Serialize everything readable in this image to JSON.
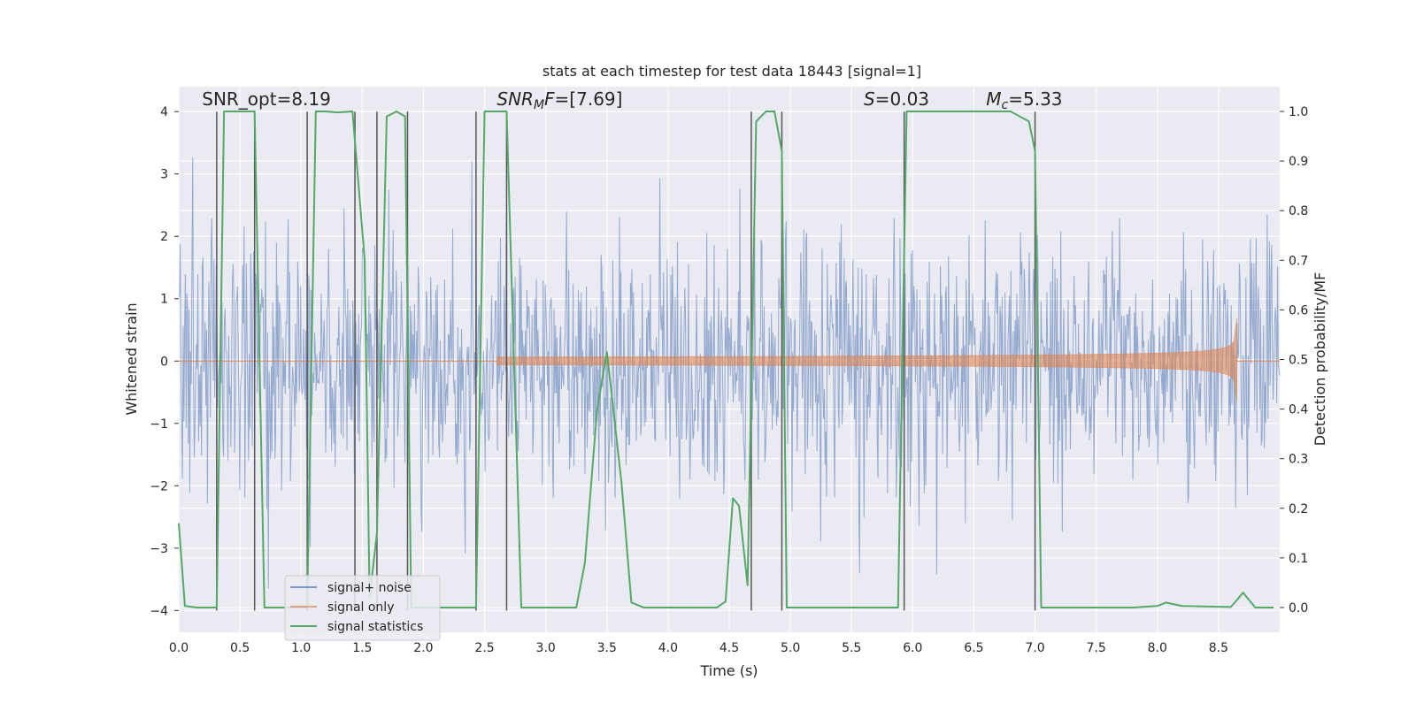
{
  "chart_data": {
    "type": "line",
    "title": "stats at each timestep for test data 18443 [signal=1]",
    "xlabel": "Time (s)",
    "ylabel": "Whitened strain",
    "y2label": "Detection probability/MF",
    "xlim": [
      0.0,
      9.0
    ],
    "ylim": [
      -4.35,
      4.4
    ],
    "y2lim": [
      -0.05,
      1.05
    ],
    "xticks": [
      "0.0",
      "0.5",
      "1.0",
      "1.5",
      "2.0",
      "2.5",
      "3.0",
      "3.5",
      "4.0",
      "4.5",
      "5.0",
      "5.5",
      "6.0",
      "6.5",
      "7.0",
      "7.5",
      "8.0",
      "8.5"
    ],
    "yticks": [
      "−4",
      "−3",
      "−2",
      "−1",
      "0",
      "1",
      "2",
      "3",
      "4"
    ],
    "y2ticks": [
      "0.0",
      "0.1",
      "0.2",
      "0.3",
      "0.4",
      "0.5",
      "0.6",
      "0.7",
      "0.8",
      "0.9",
      "1.0"
    ],
    "grid": true,
    "legend_placement": "lower-left",
    "annotations": [
      {
        "id": "snr-opt",
        "parts": [
          {
            "t": "SNR_opt=8.19",
            "i": false
          }
        ],
        "x": 0.19,
        "y": 4.1
      },
      {
        "id": "snr-mf",
        "parts": [
          {
            "t": "SNR",
            "i": true
          },
          {
            "t": "M",
            "i": true,
            "sub": true
          },
          {
            "t": "F",
            "i": true
          },
          {
            "t": "=[7.69]",
            "i": false
          }
        ],
        "x": 2.6,
        "y": 4.1
      },
      {
        "id": "s-value",
        "parts": [
          {
            "t": "S",
            "i": true
          },
          {
            "t": "=0.03",
            "i": false
          }
        ],
        "x": 5.6,
        "y": 4.1
      },
      {
        "id": "mc-value",
        "parts": [
          {
            "t": "M",
            "i": true
          },
          {
            "t": "c",
            "i": true,
            "sub": true
          },
          {
            "t": "=5.33",
            "i": false
          }
        ],
        "x": 6.6,
        "y": 4.1
      }
    ],
    "series": [
      {
        "name": "signal+ noise",
        "color": "#4c72b0",
        "kind": "noise-band",
        "sigma": 1.0,
        "duration": 9.0,
        "samples": 1500,
        "axis": "left"
      },
      {
        "name": "signal only",
        "color": "#dd8452",
        "kind": "chirp",
        "start_time": 2.6,
        "merger_time": 8.65,
        "start_amplitude": 0.02,
        "peak_amplitude": 0.92,
        "axis": "left"
      },
      {
        "name": "signal statistics",
        "color": "#55a868",
        "kind": "line",
        "axis": "right",
        "x": [
          0.0,
          0.05,
          0.15,
          0.25,
          0.31,
          0.37,
          0.44,
          0.55,
          0.62,
          0.7,
          0.75,
          0.9,
          1.0,
          1.05,
          1.12,
          1.2,
          1.3,
          1.42,
          1.47,
          1.52,
          1.56,
          1.62,
          1.7,
          1.78,
          1.85,
          1.9,
          2.0,
          2.1,
          2.3,
          2.43,
          2.5,
          2.6,
          2.68,
          2.8,
          3.0,
          3.25,
          3.32,
          3.42,
          3.5,
          3.62,
          3.7,
          3.8,
          4.0,
          4.2,
          4.4,
          4.47,
          4.53,
          4.58,
          4.65,
          4.72,
          4.8,
          4.87,
          4.93,
          4.97,
          5.2,
          5.5,
          5.8,
          5.88,
          5.95,
          6.2,
          6.5,
          6.8,
          6.95,
          7.0,
          7.05,
          7.2,
          7.4,
          7.6,
          7.8,
          8.0,
          8.07,
          8.2,
          8.4,
          8.6,
          8.64,
          8.7,
          8.8,
          8.95
        ],
        "values": [
          0.17,
          0.003,
          0.0,
          0.0,
          0.0,
          1.0,
          1.0,
          1.0,
          1.0,
          0.0,
          0.0,
          0.0,
          0.0,
          0.0,
          1.0,
          1.0,
          0.998,
          1.0,
          0.85,
          0.7,
          0.02,
          0.15,
          0.99,
          1.0,
          0.99,
          0.0,
          0.0,
          0.0,
          0.0,
          0.0,
          1.0,
          1.0,
          1.0,
          0.0,
          0.0,
          0.0,
          0.09,
          0.4,
          0.515,
          0.25,
          0.01,
          0.0,
          0.0,
          0.0,
          0.0,
          0.012,
          0.22,
          0.205,
          0.045,
          0.98,
          1.0,
          1.0,
          0.92,
          0.0,
          0.0,
          0.0,
          0.0,
          0.0,
          1.0,
          1.0,
          1.0,
          1.0,
          0.98,
          0.92,
          0.0,
          0.0,
          0.0,
          0.0,
          0.0,
          0.003,
          0.01,
          0.003,
          0.002,
          0.001,
          0.012,
          0.03,
          0.0,
          0.0
        ]
      },
      {
        "name": "",
        "color": "#555555",
        "kind": "vlines",
        "axis": "left",
        "x": [
          0.31,
          0.62,
          1.05,
          1.44,
          1.62,
          1.87,
          2.43,
          2.68,
          4.68,
          4.93,
          5.93,
          7.0
        ]
      }
    ]
  }
}
